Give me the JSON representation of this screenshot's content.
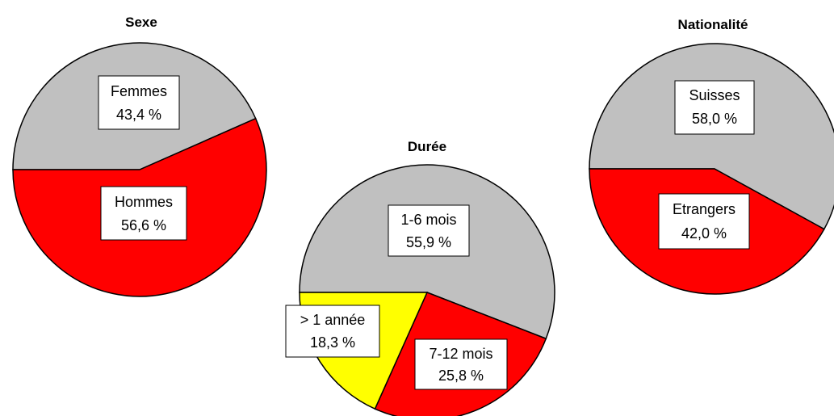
{
  "chart_data": [
    {
      "type": "pie",
      "title": "Sexe",
      "slices": [
        {
          "label": "Femmes",
          "value": 43.4,
          "value_text": "43,4 %",
          "color": "#c0c0c0"
        },
        {
          "label": "Hommes",
          "value": 56.6,
          "value_text": "56,6 %",
          "color": "#ff0000"
        }
      ]
    },
    {
      "type": "pie",
      "title": "Durée",
      "slices": [
        {
          "label": "1-6 mois",
          "value": 55.9,
          "value_text": "55,9 %",
          "color": "#c0c0c0"
        },
        {
          "label": "7-12 mois",
          "value": 25.8,
          "value_text": "25,8 %",
          "color": "#ff0000"
        },
        {
          "label": "> 1 année",
          "value": 18.3,
          "value_text": "18,3 %",
          "color": "#ffff00"
        }
      ]
    },
    {
      "type": "pie",
      "title": "Nationalité",
      "slices": [
        {
          "label": "Suisses",
          "value": 58.0,
          "value_text": "58,0 %",
          "color": "#c0c0c0"
        },
        {
          "label": "Etrangers",
          "value": 42.0,
          "value_text": "42,0 %",
          "color": "#ff0000"
        }
      ]
    }
  ]
}
